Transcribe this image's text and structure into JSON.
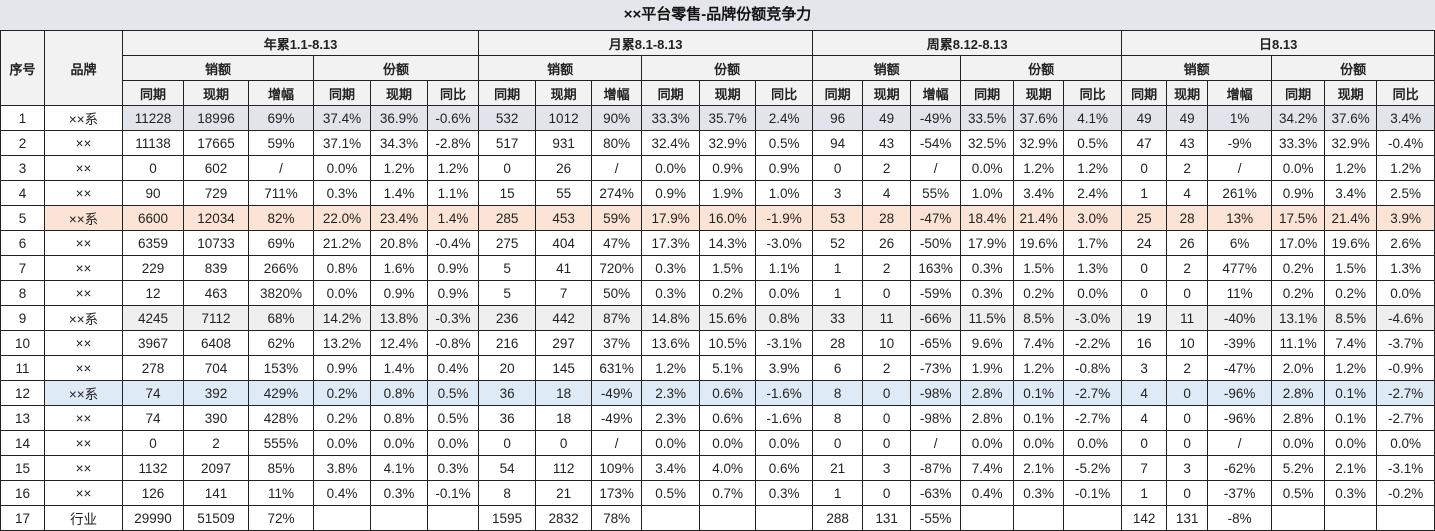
{
  "title": "××平台零售-品牌份额竞争力",
  "headers": {
    "seq": "序号",
    "brand": "品牌",
    "periods": [
      "年累1.1-8.13",
      "月累8.1-8.13",
      "周累8.12-8.13",
      "日8.13"
    ],
    "sales": "销额",
    "share": "份额",
    "sub": [
      "同期",
      "现期",
      "增幅",
      "同期",
      "现期",
      "同比"
    ]
  },
  "highlight_colors": {
    "gray": "#e1e4ea",
    "peach": "#fbe4d5",
    "light": "#efefef",
    "blue": "#deeaf6"
  },
  "rows": [
    {
      "seq": "1",
      "brand": "××系",
      "hl": "gray",
      "cells": [
        "11228",
        "18996",
        "69%",
        "37.4%",
        "36.9%",
        "-0.6%",
        "532",
        "1012",
        "90%",
        "33.3%",
        "35.7%",
        "2.4%",
        "96",
        "49",
        "-49%",
        "33.5%",
        "37.6%",
        "4.1%",
        "49",
        "49",
        "1%",
        "34.2%",
        "37.6%",
        "3.4%"
      ]
    },
    {
      "seq": "2",
      "brand": "××",
      "cells": [
        "11138",
        "17665",
        "59%",
        "37.1%",
        "34.3%",
        "-2.8%",
        "517",
        "931",
        "80%",
        "32.4%",
        "32.9%",
        "0.5%",
        "94",
        "43",
        "-54%",
        "32.5%",
        "32.9%",
        "0.5%",
        "47",
        "43",
        "-9%",
        "33.3%",
        "32.9%",
        "-0.4%"
      ]
    },
    {
      "seq": "3",
      "brand": "××",
      "cells": [
        "0",
        "602",
        "/",
        "0.0%",
        "1.2%",
        "1.2%",
        "0",
        "26",
        "/",
        "0.0%",
        "0.9%",
        "0.9%",
        "0",
        "2",
        "/",
        "0.0%",
        "1.2%",
        "1.2%",
        "0",
        "2",
        "/",
        "0.0%",
        "1.2%",
        "1.2%"
      ]
    },
    {
      "seq": "4",
      "brand": "××",
      "cells": [
        "90",
        "729",
        "711%",
        "0.3%",
        "1.4%",
        "1.1%",
        "15",
        "55",
        "274%",
        "0.9%",
        "1.9%",
        "1.0%",
        "3",
        "4",
        "55%",
        "1.0%",
        "3.4%",
        "2.4%",
        "1",
        "4",
        "261%",
        "0.9%",
        "3.4%",
        "2.5%"
      ]
    },
    {
      "seq": "5",
      "brand": "××系",
      "hl": "peach",
      "cells": [
        "6600",
        "12034",
        "82%",
        "22.0%",
        "23.4%",
        "1.4%",
        "285",
        "453",
        "59%",
        "17.9%",
        "16.0%",
        "-1.9%",
        "53",
        "28",
        "-47%",
        "18.4%",
        "21.4%",
        "3.0%",
        "25",
        "28",
        "13%",
        "17.5%",
        "21.4%",
        "3.9%"
      ]
    },
    {
      "seq": "6",
      "brand": "××",
      "cells": [
        "6359",
        "10733",
        "69%",
        "21.2%",
        "20.8%",
        "-0.4%",
        "275",
        "404",
        "47%",
        "17.3%",
        "14.3%",
        "-3.0%",
        "52",
        "26",
        "-50%",
        "17.9%",
        "19.6%",
        "1.7%",
        "24",
        "26",
        "6%",
        "17.0%",
        "19.6%",
        "2.6%"
      ]
    },
    {
      "seq": "7",
      "brand": "××",
      "cells": [
        "229",
        "839",
        "266%",
        "0.8%",
        "1.6%",
        "0.9%",
        "5",
        "41",
        "720%",
        "0.3%",
        "1.5%",
        "1.1%",
        "1",
        "2",
        "163%",
        "0.3%",
        "1.5%",
        "1.3%",
        "0",
        "2",
        "477%",
        "0.2%",
        "1.5%",
        "1.3%"
      ]
    },
    {
      "seq": "8",
      "brand": "××",
      "cells": [
        "12",
        "463",
        "3820%",
        "0.0%",
        "0.9%",
        "0.9%",
        "5",
        "7",
        "50%",
        "0.3%",
        "0.2%",
        "0.0%",
        "1",
        "0",
        "-59%",
        "0.3%",
        "0.2%",
        "0.0%",
        "0",
        "0",
        "11%",
        "0.2%",
        "0.2%",
        "0.0%"
      ]
    },
    {
      "seq": "9",
      "brand": "××系",
      "hl": "light",
      "cells": [
        "4245",
        "7112",
        "68%",
        "14.2%",
        "13.8%",
        "-0.3%",
        "236",
        "442",
        "87%",
        "14.8%",
        "15.6%",
        "0.8%",
        "33",
        "11",
        "-66%",
        "11.5%",
        "8.5%",
        "-3.0%",
        "19",
        "11",
        "-40%",
        "13.1%",
        "8.5%",
        "-4.6%"
      ]
    },
    {
      "seq": "10",
      "brand": "××",
      "cells": [
        "3967",
        "6408",
        "62%",
        "13.2%",
        "12.4%",
        "-0.8%",
        "216",
        "297",
        "37%",
        "13.6%",
        "10.5%",
        "-3.1%",
        "28",
        "10",
        "-65%",
        "9.6%",
        "7.4%",
        "-2.2%",
        "16",
        "10",
        "-39%",
        "11.1%",
        "7.4%",
        "-3.7%"
      ]
    },
    {
      "seq": "11",
      "brand": "××",
      "cells": [
        "278",
        "704",
        "153%",
        "0.9%",
        "1.4%",
        "0.4%",
        "20",
        "145",
        "631%",
        "1.2%",
        "5.1%",
        "3.9%",
        "6",
        "2",
        "-73%",
        "1.9%",
        "1.2%",
        "-0.8%",
        "3",
        "2",
        "-47%",
        "2.0%",
        "1.2%",
        "-0.9%"
      ]
    },
    {
      "seq": "12",
      "brand": "××系",
      "hl": "blue",
      "cells": [
        "74",
        "392",
        "429%",
        "0.2%",
        "0.8%",
        "0.5%",
        "36",
        "18",
        "-49%",
        "2.3%",
        "0.6%",
        "-1.6%",
        "8",
        "0",
        "-98%",
        "2.8%",
        "0.1%",
        "-2.7%",
        "4",
        "0",
        "-96%",
        "2.8%",
        "0.1%",
        "-2.7%"
      ]
    },
    {
      "seq": "13",
      "brand": "××",
      "cells": [
        "74",
        "390",
        "428%",
        "0.2%",
        "0.8%",
        "0.5%",
        "36",
        "18",
        "-49%",
        "2.3%",
        "0.6%",
        "-1.6%",
        "8",
        "0",
        "-98%",
        "2.8%",
        "0.1%",
        "-2.7%",
        "4",
        "0",
        "-96%",
        "2.8%",
        "0.1%",
        "-2.7%"
      ]
    },
    {
      "seq": "14",
      "brand": "××",
      "cells": [
        "0",
        "2",
        "555%",
        "0.0%",
        "0.0%",
        "0.0%",
        "0",
        "0",
        "/",
        "0.0%",
        "0.0%",
        "0.0%",
        "0",
        "0",
        "/",
        "0.0%",
        "0.0%",
        "0.0%",
        "0",
        "0",
        "/",
        "0.0%",
        "0.0%",
        "0.0%"
      ]
    },
    {
      "seq": "15",
      "brand": "××",
      "cells": [
        "1132",
        "2097",
        "85%",
        "3.8%",
        "4.1%",
        "0.3%",
        "54",
        "112",
        "109%",
        "3.4%",
        "4.0%",
        "0.6%",
        "21",
        "3",
        "-87%",
        "7.4%",
        "2.1%",
        "-5.2%",
        "7",
        "3",
        "-62%",
        "5.2%",
        "2.1%",
        "-3.1%"
      ]
    },
    {
      "seq": "16",
      "brand": "××",
      "cells": [
        "126",
        "141",
        "11%",
        "0.4%",
        "0.3%",
        "-0.1%",
        "8",
        "21",
        "173%",
        "0.5%",
        "0.7%",
        "0.3%",
        "1",
        "0",
        "-63%",
        "0.4%",
        "0.3%",
        "-0.1%",
        "1",
        "0",
        "-37%",
        "0.5%",
        "0.3%",
        "-0.2%"
      ]
    },
    {
      "seq": "17",
      "brand": "行业",
      "cells": [
        "29990",
        "51509",
        "72%",
        "",
        "",
        "",
        "1595",
        "2832",
        "78%",
        "",
        "",
        "",
        "288",
        "131",
        "-55%",
        "",
        "",
        "",
        "142",
        "131",
        "-8%",
        "",
        "",
        ""
      ]
    }
  ]
}
